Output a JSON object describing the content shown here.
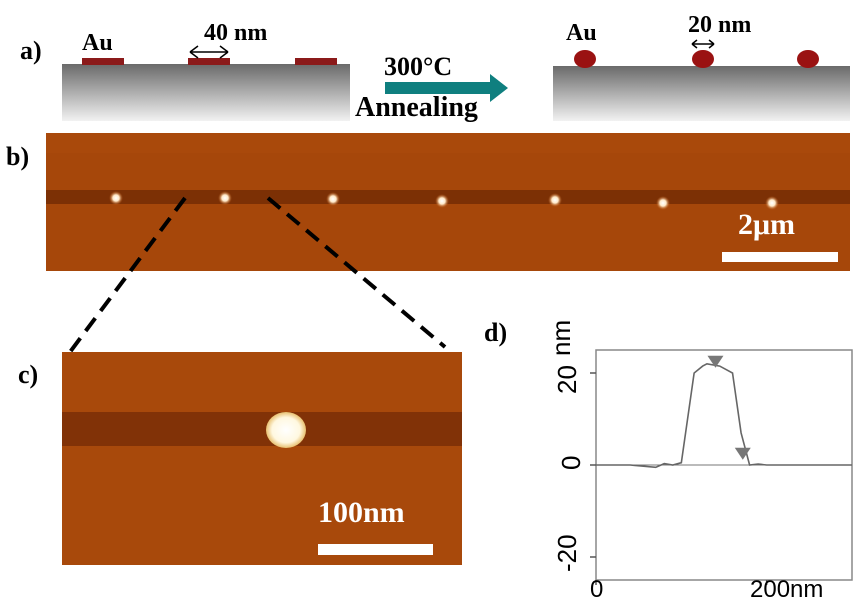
{
  "panel_a": {
    "letter": "a)",
    "au_left": "Au",
    "width_before": "40 nm",
    "arrow_top": "300°C",
    "arrow_bottom": "Annealing",
    "au_right": "Au",
    "width_after": "20 nm"
  },
  "panel_b": {
    "letter": "b)",
    "scale_bar": "2μm"
  },
  "panel_c": {
    "letter": "c)",
    "scale_bar": "100nm"
  },
  "panel_d": {
    "letter": "d)",
    "ylabel": "nm",
    "yticks": [
      "20",
      "0",
      "-20"
    ],
    "xticks": [
      "0",
      "200"
    ],
    "xunit": "nm"
  },
  "chart_data": {
    "type": "line",
    "title": "",
    "xlabel": "nm",
    "ylabel": "nm",
    "xlim": [
      0,
      300
    ],
    "ylim": [
      -25,
      25
    ],
    "series": [
      {
        "x": [
          0,
          40,
          70,
          80,
          90,
          100,
          115,
          125,
          130,
          145,
          160,
          170,
          180,
          190,
          200,
          230,
          260,
          300
        ],
        "values": [
          0,
          0,
          -0.5,
          0.3,
          0,
          0.5,
          20,
          21.5,
          22,
          21.5,
          20,
          7,
          0,
          0.2,
          0,
          0,
          0,
          0
        ]
      }
    ],
    "markers": [
      {
        "x": 140,
        "y": 22
      },
      {
        "x": 172,
        "y": 2
      }
    ]
  }
}
